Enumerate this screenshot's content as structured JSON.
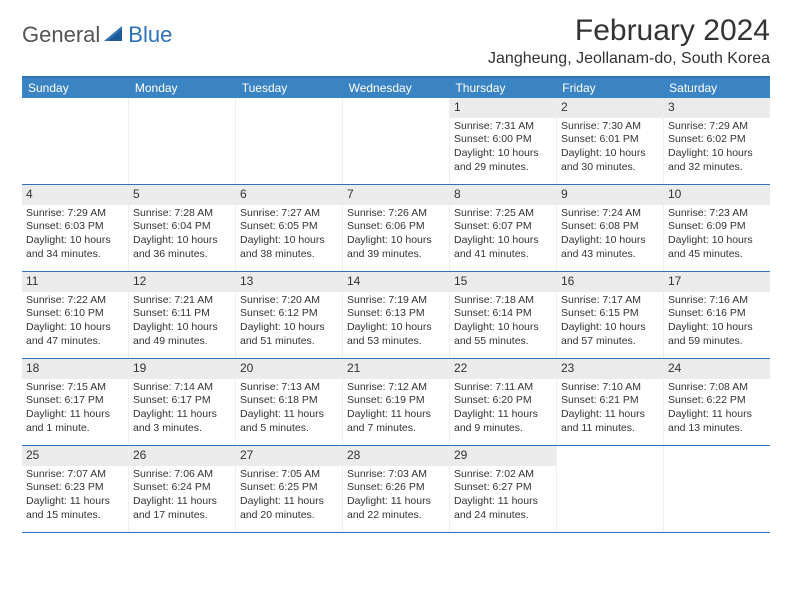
{
  "logo": {
    "text1": "General",
    "text2": "Blue"
  },
  "title": "February 2024",
  "location": "Jangheung, Jeollanam-do, South Korea",
  "colors": {
    "header_bar": "#3b84c4",
    "border": "#2d72b8",
    "daynum_bg": "#ebebeb",
    "text": "#333333"
  },
  "weekdays": [
    "Sunday",
    "Monday",
    "Tuesday",
    "Wednesday",
    "Thursday",
    "Friday",
    "Saturday"
  ],
  "weeks": [
    [
      null,
      null,
      null,
      null,
      {
        "n": "1",
        "sr": "Sunrise: 7:31 AM",
        "ss": "Sunset: 6:00 PM",
        "dl": "Daylight: 10 hours and 29 minutes."
      },
      {
        "n": "2",
        "sr": "Sunrise: 7:30 AM",
        "ss": "Sunset: 6:01 PM",
        "dl": "Daylight: 10 hours and 30 minutes."
      },
      {
        "n": "3",
        "sr": "Sunrise: 7:29 AM",
        "ss": "Sunset: 6:02 PM",
        "dl": "Daylight: 10 hours and 32 minutes."
      }
    ],
    [
      {
        "n": "4",
        "sr": "Sunrise: 7:29 AM",
        "ss": "Sunset: 6:03 PM",
        "dl": "Daylight: 10 hours and 34 minutes."
      },
      {
        "n": "5",
        "sr": "Sunrise: 7:28 AM",
        "ss": "Sunset: 6:04 PM",
        "dl": "Daylight: 10 hours and 36 minutes."
      },
      {
        "n": "6",
        "sr": "Sunrise: 7:27 AM",
        "ss": "Sunset: 6:05 PM",
        "dl": "Daylight: 10 hours and 38 minutes."
      },
      {
        "n": "7",
        "sr": "Sunrise: 7:26 AM",
        "ss": "Sunset: 6:06 PM",
        "dl": "Daylight: 10 hours and 39 minutes."
      },
      {
        "n": "8",
        "sr": "Sunrise: 7:25 AM",
        "ss": "Sunset: 6:07 PM",
        "dl": "Daylight: 10 hours and 41 minutes."
      },
      {
        "n": "9",
        "sr": "Sunrise: 7:24 AM",
        "ss": "Sunset: 6:08 PM",
        "dl": "Daylight: 10 hours and 43 minutes."
      },
      {
        "n": "10",
        "sr": "Sunrise: 7:23 AM",
        "ss": "Sunset: 6:09 PM",
        "dl": "Daylight: 10 hours and 45 minutes."
      }
    ],
    [
      {
        "n": "11",
        "sr": "Sunrise: 7:22 AM",
        "ss": "Sunset: 6:10 PM",
        "dl": "Daylight: 10 hours and 47 minutes."
      },
      {
        "n": "12",
        "sr": "Sunrise: 7:21 AM",
        "ss": "Sunset: 6:11 PM",
        "dl": "Daylight: 10 hours and 49 minutes."
      },
      {
        "n": "13",
        "sr": "Sunrise: 7:20 AM",
        "ss": "Sunset: 6:12 PM",
        "dl": "Daylight: 10 hours and 51 minutes."
      },
      {
        "n": "14",
        "sr": "Sunrise: 7:19 AM",
        "ss": "Sunset: 6:13 PM",
        "dl": "Daylight: 10 hours and 53 minutes."
      },
      {
        "n": "15",
        "sr": "Sunrise: 7:18 AM",
        "ss": "Sunset: 6:14 PM",
        "dl": "Daylight: 10 hours and 55 minutes."
      },
      {
        "n": "16",
        "sr": "Sunrise: 7:17 AM",
        "ss": "Sunset: 6:15 PM",
        "dl": "Daylight: 10 hours and 57 minutes."
      },
      {
        "n": "17",
        "sr": "Sunrise: 7:16 AM",
        "ss": "Sunset: 6:16 PM",
        "dl": "Daylight: 10 hours and 59 minutes."
      }
    ],
    [
      {
        "n": "18",
        "sr": "Sunrise: 7:15 AM",
        "ss": "Sunset: 6:17 PM",
        "dl": "Daylight: 11 hours and 1 minute."
      },
      {
        "n": "19",
        "sr": "Sunrise: 7:14 AM",
        "ss": "Sunset: 6:17 PM",
        "dl": "Daylight: 11 hours and 3 minutes."
      },
      {
        "n": "20",
        "sr": "Sunrise: 7:13 AM",
        "ss": "Sunset: 6:18 PM",
        "dl": "Daylight: 11 hours and 5 minutes."
      },
      {
        "n": "21",
        "sr": "Sunrise: 7:12 AM",
        "ss": "Sunset: 6:19 PM",
        "dl": "Daylight: 11 hours and 7 minutes."
      },
      {
        "n": "22",
        "sr": "Sunrise: 7:11 AM",
        "ss": "Sunset: 6:20 PM",
        "dl": "Daylight: 11 hours and 9 minutes."
      },
      {
        "n": "23",
        "sr": "Sunrise: 7:10 AM",
        "ss": "Sunset: 6:21 PM",
        "dl": "Daylight: 11 hours and 11 minutes."
      },
      {
        "n": "24",
        "sr": "Sunrise: 7:08 AM",
        "ss": "Sunset: 6:22 PM",
        "dl": "Daylight: 11 hours and 13 minutes."
      }
    ],
    [
      {
        "n": "25",
        "sr": "Sunrise: 7:07 AM",
        "ss": "Sunset: 6:23 PM",
        "dl": "Daylight: 11 hours and 15 minutes."
      },
      {
        "n": "26",
        "sr": "Sunrise: 7:06 AM",
        "ss": "Sunset: 6:24 PM",
        "dl": "Daylight: 11 hours and 17 minutes."
      },
      {
        "n": "27",
        "sr": "Sunrise: 7:05 AM",
        "ss": "Sunset: 6:25 PM",
        "dl": "Daylight: 11 hours and 20 minutes."
      },
      {
        "n": "28",
        "sr": "Sunrise: 7:03 AM",
        "ss": "Sunset: 6:26 PM",
        "dl": "Daylight: 11 hours and 22 minutes."
      },
      {
        "n": "29",
        "sr": "Sunrise: 7:02 AM",
        "ss": "Sunset: 6:27 PM",
        "dl": "Daylight: 11 hours and 24 minutes."
      },
      null,
      null
    ]
  ]
}
